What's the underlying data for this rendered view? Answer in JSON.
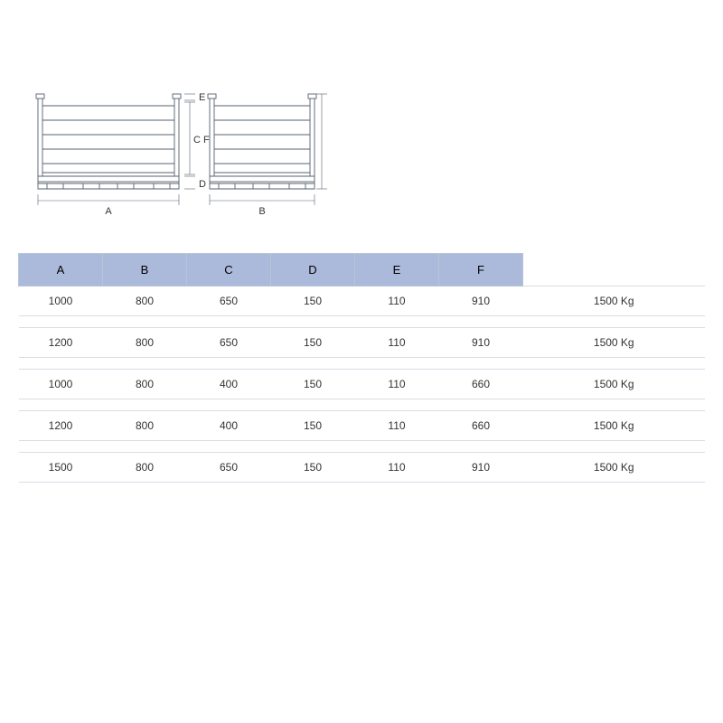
{
  "diagram": {
    "labels": {
      "A": "A",
      "B": "B",
      "C": "C",
      "D": "D",
      "E": "E",
      "F": "F"
    },
    "stroke_color": "#556070",
    "stroke_width": 0.9,
    "text_color": "#333333",
    "text_fontsize": 11
  },
  "table": {
    "header_bg": "#abb9da",
    "header_border": "#b8c4d8",
    "row_border": "#d8dce5",
    "text_color": "#333333",
    "columns": [
      "A",
      "B",
      "C",
      "D",
      "E",
      "F"
    ],
    "rows": [
      {
        "dims": [
          "1000",
          "800",
          "650",
          "150",
          "110",
          "910"
        ],
        "weight": "1500 Kg"
      },
      {
        "dims": [
          "1200",
          "800",
          "650",
          "150",
          "110",
          "910"
        ],
        "weight": "1500 Kg"
      },
      {
        "dims": [
          "1000",
          "800",
          "400",
          "150",
          "110",
          "660"
        ],
        "weight": "1500 Kg"
      },
      {
        "dims": [
          "1200",
          "800",
          "400",
          "150",
          "110",
          "660"
        ],
        "weight": "1500 Kg"
      },
      {
        "dims": [
          "1500",
          "800",
          "650",
          "150",
          "110",
          "910"
        ],
        "weight": "1500 Kg"
      }
    ]
  }
}
